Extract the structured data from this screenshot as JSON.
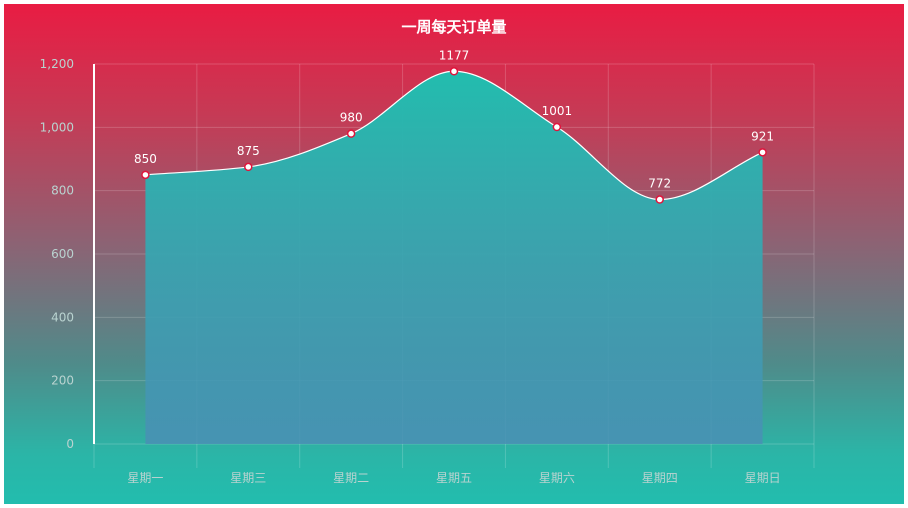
{
  "chart_data": {
    "type": "area",
    "title": "一周每天订单量",
    "categories": [
      "星期一",
      "星期三",
      "星期二",
      "星期五",
      "星期六",
      "星期四",
      "星期日"
    ],
    "series": [
      {
        "values": [
          850,
          875,
          980,
          1177,
          1001,
          772,
          921
        ]
      }
    ],
    "data_labels": [
      "850",
      "875",
      "980",
      "1177",
      "1001",
      "772",
      "921"
    ],
    "y_ticks": [
      "0",
      "200",
      "400",
      "600",
      "800",
      "1,000",
      "1,200"
    ],
    "ylim": [
      0,
      1200
    ],
    "smooth": true,
    "grid": true,
    "colors": {
      "line": "#ffffff",
      "area_top": "#22bdae",
      "area_bottom": "#4a8fb5",
      "marker_fill": "#ffffff",
      "marker_stroke": "#e0143c",
      "axis_text": "#b9d3d0",
      "data_label": "#ffffff",
      "grid": "rgba(255,255,255,0.18)"
    }
  }
}
